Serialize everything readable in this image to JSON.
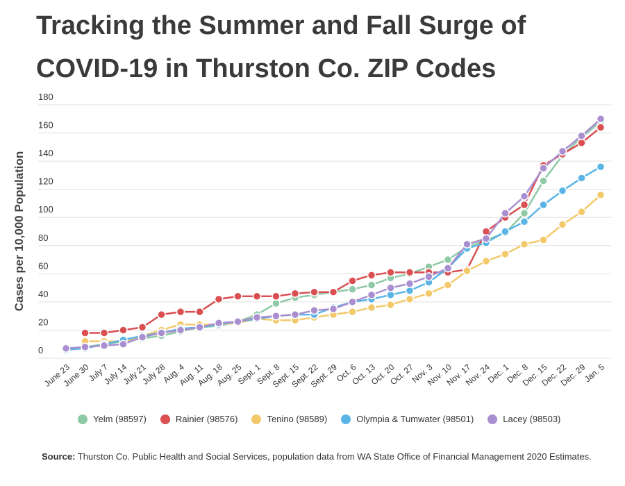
{
  "title": "Tracking the Summer and Fall Surge of COVID-19 in Thurston Co. ZIP Codes",
  "source": {
    "label": "Source:",
    "text": "Thurston Co. Public Health and Social Services, population data from WA State Office of Financial Management 2020 Estimates."
  },
  "chart_data": {
    "type": "line",
    "title": "Tracking the Summer and Fall Surge of COVID-19 in Thurston Co. ZIP Codes",
    "xlabel": "",
    "ylabel": "Cases per 10,000 Population",
    "ylim": [
      0,
      180
    ],
    "yticks": [
      0,
      20,
      40,
      60,
      80,
      100,
      120,
      140,
      160,
      180
    ],
    "grid": true,
    "legend_position": "bottom",
    "categories": [
      "June 23",
      "June 30",
      "July 7",
      "July 14",
      "July 21",
      "July 28",
      "Aug. 4",
      "Aug. 11",
      "Aug. 18",
      "Aug. 25",
      "Sept. 1",
      "Sept. 8",
      "Sept. 15",
      "Sept. 22",
      "Sept. 29",
      "Oct. 6",
      "Oct. 13",
      "Oct. 20",
      "Oct. 27",
      "Nov. 3",
      "Nov. 10",
      "Nov. 17",
      "Nov. 24",
      "Dec. 1",
      "Dec. 8",
      "Dec. 15",
      "Dec. 22",
      "Dec. 29",
      "Jan. 5"
    ],
    "series": [
      {
        "name": "Yelm (98597)",
        "color": "#8fc9a5",
        "values": [
          6,
          8,
          10,
          12,
          14,
          16,
          19,
          22,
          23,
          26,
          31,
          39,
          43,
          45,
          47,
          49,
          52,
          57,
          60,
          65,
          70,
          79,
          84,
          89,
          103,
          126,
          144,
          157,
          168
        ]
      },
      {
        "name": "Rainier (98576)",
        "color": "#d94f52",
        "values": [
          null,
          18,
          18,
          20,
          22,
          31,
          33,
          33,
          42,
          44,
          44,
          44,
          46,
          47,
          47,
          55,
          59,
          61,
          61,
          61,
          61,
          63,
          90,
          100,
          109,
          137,
          145,
          153,
          164
        ]
      },
      {
        "name": "Tenino (98589)",
        "color": "#f2c96b",
        "values": [
          null,
          12,
          12,
          12,
          16,
          20,
          24,
          24,
          24,
          25,
          28,
          27,
          27,
          29,
          31,
          33,
          36,
          38,
          42,
          46,
          52,
          62,
          69,
          74,
          81,
          84,
          95,
          104,
          116
        ]
      },
      {
        "name": "Olympia & Tumwater (98501)",
        "color": "#5ab4e5",
        "values": [
          6,
          7,
          10,
          13,
          16,
          18,
          21,
          22,
          24,
          26,
          28,
          30,
          31,
          31,
          36,
          40,
          42,
          45,
          48,
          54,
          64,
          78,
          82,
          90,
          97,
          109,
          119,
          128,
          136
        ]
      },
      {
        "name": "Lacey (98503)",
        "color": "#a98fcf",
        "values": [
          7,
          8,
          9,
          10,
          15,
          18,
          20,
          22,
          25,
          26,
          29,
          30,
          31,
          34,
          35,
          40,
          45,
          50,
          53,
          58,
          64,
          81,
          85,
          103,
          115,
          135,
          147,
          158,
          170
        ]
      }
    ]
  }
}
